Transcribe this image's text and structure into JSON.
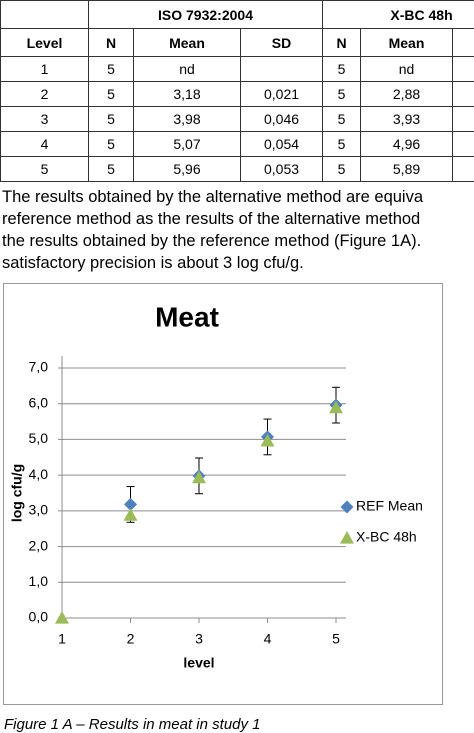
{
  "table": {
    "group_headers": [
      "ISO 7932:2004",
      "X-BC 48h"
    ],
    "columns": [
      "Level",
      "N",
      "Mean",
      "SD",
      "N",
      "Mean"
    ],
    "rows": [
      [
        "1",
        "5",
        "nd",
        null,
        "5",
        "nd"
      ],
      [
        "2",
        "5",
        "3,18",
        "0,021",
        "5",
        "2,88"
      ],
      [
        "3",
        "5",
        "3,98",
        "0,046",
        "5",
        "3,93"
      ],
      [
        "4",
        "5",
        "5,07",
        "0,054",
        "5",
        "4,96"
      ],
      [
        "5",
        "5",
        "5,96",
        "0,053",
        "5",
        "5,89"
      ]
    ]
  },
  "paragraph": [
    "The results obtained by the alternative method are equiva",
    "reference method as the results of the alternative method",
    "the results obtained by the reference method (Figure 1A).",
    "satisfactory precision is about 3 log cfu/g."
  ],
  "chart_data": {
    "type": "scatter",
    "title": "Meat",
    "x_label": "level",
    "y_label": "log cfu/g",
    "x": [
      1,
      2,
      3,
      4,
      5
    ],
    "xlim": [
      1,
      5
    ],
    "xticks": [
      1,
      2,
      3,
      4,
      5
    ],
    "ylim": [
      0,
      7
    ],
    "yticks": [
      {
        "value": 0,
        "label": "0,0"
      },
      {
        "value": 1,
        "label": "1,0"
      },
      {
        "value": 2,
        "label": "2,0"
      },
      {
        "value": 3,
        "label": "3,0"
      },
      {
        "value": 4,
        "label": "4,0"
      },
      {
        "value": 5,
        "label": "5,0"
      },
      {
        "value": 6,
        "label": "6,0"
      },
      {
        "value": 7,
        "label": "7,0"
      }
    ],
    "grid": true,
    "series": [
      {
        "name": "REF Mean",
        "color": "#4f81bd",
        "marker": "diamond",
        "values": [
          null,
          3.18,
          3.98,
          5.07,
          5.96
        ],
        "errors": [
          null,
          0.5,
          0.5,
          0.5,
          0.5
        ]
      },
      {
        "name": "X-BC 48h",
        "color": "#9bbb59",
        "marker": "triangle",
        "values": [
          0,
          2.88,
          3.93,
          4.96,
          5.89
        ]
      }
    ]
  },
  "caption": "Figure 1 A – Results in meat in study 1"
}
